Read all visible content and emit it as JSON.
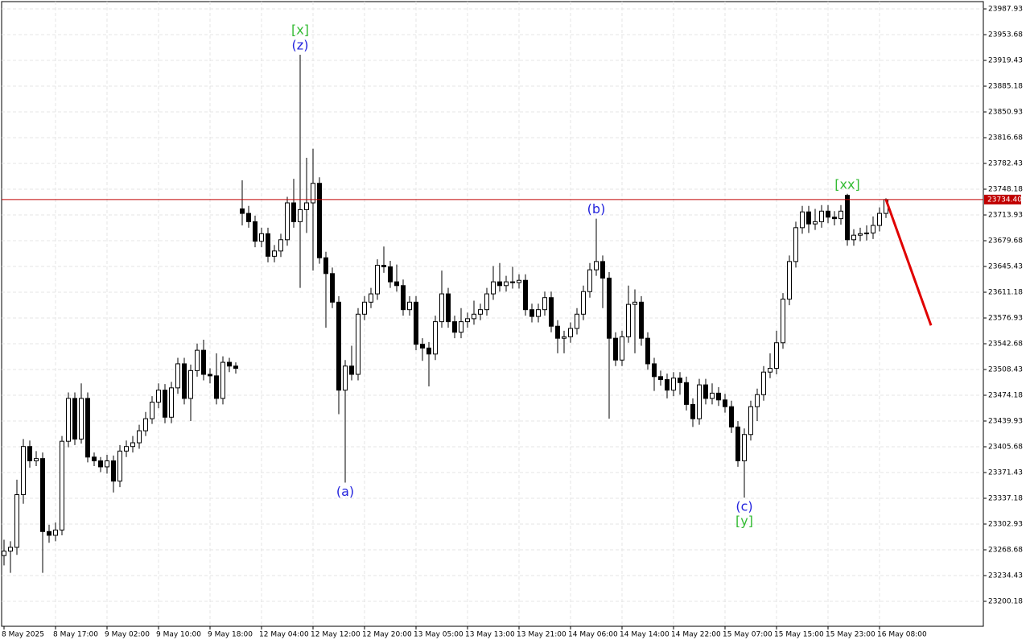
{
  "chart_data": {
    "type": "candlestick",
    "open": [
      23261,
      23267,
      23272,
      23342,
      23406,
      23387,
      23390,
      23293,
      23288,
      23295,
      23413,
      23470,
      23416,
      23470,
      23392,
      23387,
      23379,
      23387,
      23360,
      23400,
      23406,
      23411,
      23427,
      23443,
      23465,
      23481,
      23445,
      23484,
      23516,
      23470,
      23507,
      23534,
      23502,
      23500,
      23470,
      23518,
      23513,
      23722,
      23716,
      23705,
      23679,
      23689,
      23659,
      23666,
      23681,
      23730,
      23705,
      23721,
      23730,
      23756,
      23657,
      23636,
      23598,
      23481,
      23513,
      23502,
      23582,
      23598,
      23609,
      23647,
      23645,
      23625,
      23620,
      23588,
      23598,
      23542,
      23537,
      23529,
      23572,
      23609,
      23572,
      23558,
      23572,
      23576,
      23582,
      23588,
      23609,
      23625,
      23620,
      23625,
      23624,
      23627,
      23588,
      23579,
      23588,
      23604,
      23566,
      23550,
      23552,
      23563,
      23582,
      23612,
      23641,
      23652,
      23630,
      23550,
      23521,
      23552,
      23595,
      23598,
      23550,
      23516,
      23499,
      23495,
      23481,
      23497,
      23491,
      23462,
      23443,
      23488,
      23470,
      23477,
      23468,
      23459,
      23432,
      23387,
      23422,
      23459,
      23475,
      23505,
      23510,
      23544,
      23602,
      23652,
      23697,
      23718,
      23702,
      23705,
      23719,
      23711,
      23709,
      23740,
      23681,
      23687,
      23689,
      23690,
      23700,
      23716
    ],
    "high": [
      23282,
      23280,
      23362,
      23416,
      23414,
      23400,
      23398,
      23302,
      23305,
      23420,
      23478,
      23478,
      23490,
      23478,
      23398,
      23392,
      23395,
      23394,
      23408,
      23414,
      23420,
      23435,
      23452,
      23473,
      23490,
      23489,
      23492,
      23524,
      23524,
      23515,
      23543,
      23548,
      23510,
      23530,
      23526,
      23524,
      23518,
      23760,
      23726,
      23713,
      23697,
      23697,
      23674,
      23689,
      23738,
      23762,
      23927,
      23790,
      23802,
      23764,
      23665,
      23644,
      23606,
      23521,
      23540,
      23590,
      23606,
      23617,
      23655,
      23672,
      23653,
      23648,
      23628,
      23606,
      23606,
      23550,
      23545,
      23580,
      23640,
      23617,
      23580,
      23590,
      23584,
      23600,
      23596,
      23617,
      23646,
      23650,
      23633,
      23645,
      23635,
      23635,
      23596,
      23596,
      23612,
      23612,
      23574,
      23560,
      23571,
      23590,
      23620,
      23650,
      23709,
      23660,
      23638,
      23558,
      23560,
      23620,
      23615,
      23606,
      23558,
      23524,
      23507,
      23503,
      23505,
      23505,
      23499,
      23470,
      23496,
      23496,
      23490,
      23485,
      23476,
      23467,
      23440,
      23430,
      23467,
      23483,
      23513,
      23530,
      23560,
      23610,
      23660,
      23705,
      23726,
      23726,
      23722,
      23727,
      23727,
      23719,
      23727,
      23742,
      23695,
      23697,
      23700,
      23712,
      23724,
      23736
    ],
    "low": [
      23248,
      23238,
      23262,
      23330,
      23378,
      23380,
      23238,
      23278,
      23280,
      23288,
      23405,
      23408,
      23410,
      23385,
      23380,
      23372,
      23370,
      23345,
      23352,
      23392,
      23398,
      23403,
      23420,
      23436,
      23457,
      23437,
      23437,
      23476,
      23462,
      23440,
      23499,
      23494,
      23490,
      23462,
      23462,
      23505,
      23503,
      23700,
      23697,
      23671,
      23671,
      23651,
      23651,
      23658,
      23673,
      23697,
      23617,
      23690,
      23640,
      23649,
      23564,
      23590,
      23449,
      23358,
      23494,
      23494,
      23574,
      23590,
      23601,
      23637,
      23617,
      23612,
      23580,
      23580,
      23534,
      23520,
      23486,
      23521,
      23564,
      23564,
      23550,
      23550,
      23564,
      23568,
      23574,
      23580,
      23601,
      23612,
      23612,
      23616,
      23616,
      23580,
      23571,
      23571,
      23580,
      23558,
      23530,
      23530,
      23544,
      23555,
      23574,
      23604,
      23633,
      23590,
      23443,
      23513,
      23513,
      23544,
      23530,
      23540,
      23508,
      23480,
      23487,
      23470,
      23473,
      23475,
      23454,
      23432,
      23435,
      23462,
      23462,
      23460,
      23451,
      23424,
      23379,
      23338,
      23414,
      23440,
      23467,
      23497,
      23502,
      23536,
      23594,
      23644,
      23689,
      23690,
      23694,
      23697,
      23703,
      23700,
      23701,
      23673,
      23673,
      23679,
      23680,
      23682,
      23692,
      23710
    ],
    "close": [
      23267,
      23272,
      23342,
      23406,
      23387,
      23390,
      23293,
      23288,
      23295,
      23413,
      23470,
      23416,
      23470,
      23392,
      23387,
      23379,
      23387,
      23360,
      23400,
      23406,
      23411,
      23427,
      23443,
      23465,
      23481,
      23445,
      23484,
      23516,
      23470,
      23507,
      23534,
      23502,
      23500,
      23470,
      23518,
      23513,
      23510,
      23716,
      23705,
      23679,
      23689,
      23659,
      23666,
      23681,
      23730,
      23705,
      23721,
      23730,
      23756,
      23657,
      23636,
      23598,
      23481,
      23513,
      23502,
      23582,
      23598,
      23609,
      23647,
      23645,
      23625,
      23620,
      23588,
      23598,
      23542,
      23537,
      23529,
      23572,
      23609,
      23572,
      23558,
      23572,
      23576,
      23582,
      23588,
      23609,
      23625,
      23620,
      23625,
      23624,
      23627,
      23588,
      23579,
      23588,
      23604,
      23566,
      23550,
      23552,
      23563,
      23582,
      23612,
      23641,
      23652,
      23630,
      23550,
      23521,
      23552,
      23595,
      23598,
      23550,
      23516,
      23499,
      23495,
      23481,
      23497,
      23491,
      23462,
      23443,
      23488,
      23470,
      23477,
      23468,
      23459,
      23432,
      23387,
      23422,
      23459,
      23475,
      23505,
      23510,
      23544,
      23602,
      23652,
      23697,
      23718,
      23702,
      23705,
      23719,
      23711,
      23709,
      23719,
      23681,
      23687,
      23689,
      23690,
      23700,
      23716,
      23734.4
    ],
    "ylim": [
      23167,
      23997.6
    ],
    "yticks": [
      23200.18,
      23234.43,
      23268.68,
      23302.93,
      23337.18,
      23371.43,
      23405.68,
      23439.93,
      23474.18,
      23508.43,
      23542.68,
      23576.93,
      23611.18,
      23645.43,
      23679.68,
      23713.93,
      23748.18,
      23782.43,
      23816.68,
      23850.93,
      23885.18,
      23919.43,
      23953.68,
      23987.93
    ],
    "xticks": [
      {
        "value": 0,
        "label": "8 May 2025"
      },
      {
        "value": 8,
        "label": "8 May 17:00"
      },
      {
        "value": 16,
        "label": "9 May 02:00"
      },
      {
        "value": 24,
        "label": "9 May 10:00"
      },
      {
        "value": 32,
        "label": "9 May 18:00"
      },
      {
        "value": 40,
        "label": "12 May 04:00"
      },
      {
        "value": 48,
        "label": "12 May 12:00"
      },
      {
        "value": 56,
        "label": "12 May 20:00"
      },
      {
        "value": 64,
        "label": "13 May 05:00"
      },
      {
        "value": 72,
        "label": "13 May 13:00"
      },
      {
        "value": 80,
        "label": "13 May 21:00"
      },
      {
        "value": 88,
        "label": "14 May 06:00"
      },
      {
        "value": 96,
        "label": "14 May 14:00"
      },
      {
        "value": 104,
        "label": "14 May 22:00"
      },
      {
        "value": 112,
        "label": "15 May 07:00"
      },
      {
        "value": 120,
        "label": "15 May 15:00"
      },
      {
        "value": 128,
        "label": "15 May 23:00"
      },
      {
        "value": 136,
        "label": "16 May 08:00"
      }
    ],
    "grid": true,
    "current_price": {
      "value": 23734.4,
      "label": "23734.40",
      "color": "#c00000"
    },
    "forecast": {
      "color": "#e00000",
      "x": [
        137,
        144
      ],
      "values": [
        23734.4,
        23567
      ]
    },
    "wave_labels": [
      {
        "text": "(z)",
        "color": "#2222dd",
        "candle": 46,
        "side": "above"
      },
      {
        "text": "[x]",
        "color": "#33bb33",
        "candle": 46,
        "side": "above"
      },
      {
        "text": "(a)",
        "color": "#2222dd",
        "candle": 53,
        "side": "below"
      },
      {
        "text": "(b)",
        "color": "#2222dd",
        "candle": 92,
        "side": "above"
      },
      {
        "text": "(c)",
        "color": "#2222dd",
        "candle": 115,
        "side": "below"
      },
      {
        "text": "[y]",
        "color": "#33bb33",
        "candle": 115,
        "side": "below"
      },
      {
        "text": "[xx]",
        "color": "#33bb33",
        "candle": 131,
        "side": "above"
      }
    ]
  }
}
